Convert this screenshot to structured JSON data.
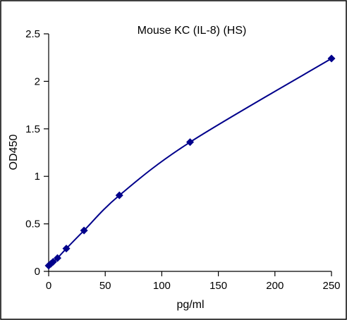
{
  "chart_data": {
    "type": "scatter",
    "title": "Mouse KC (IL-8) (HS)",
    "xlabel": "pg/ml",
    "ylabel": "OD450",
    "xlim": [
      0,
      250
    ],
    "ylim": [
      0,
      2.5
    ],
    "xticks": [
      0,
      50,
      100,
      150,
      200,
      250
    ],
    "yticks": [
      0,
      0.5,
      1,
      1.5,
      2,
      2.5
    ],
    "xtick_labels": [
      "0",
      "50",
      "100",
      "150",
      "200",
      "250"
    ],
    "ytick_labels": [
      "0",
      "0.5",
      "1",
      "1.5",
      "2",
      "2.5"
    ],
    "grid": false,
    "legend": false,
    "fit_line": "smooth curve through points",
    "series": [
      {
        "color": "#00008B",
        "marker": "diamond",
        "points": [
          {
            "x": 0,
            "y": 0.06
          },
          {
            "x": 1.95,
            "y": 0.08
          },
          {
            "x": 3.9,
            "y": 0.1
          },
          {
            "x": 7.8,
            "y": 0.14
          },
          {
            "x": 15.6,
            "y": 0.24
          },
          {
            "x": 31.25,
            "y": 0.43
          },
          {
            "x": 62.5,
            "y": 0.8
          },
          {
            "x": 125,
            "y": 1.36
          },
          {
            "x": 250,
            "y": 2.24
          }
        ]
      }
    ]
  }
}
